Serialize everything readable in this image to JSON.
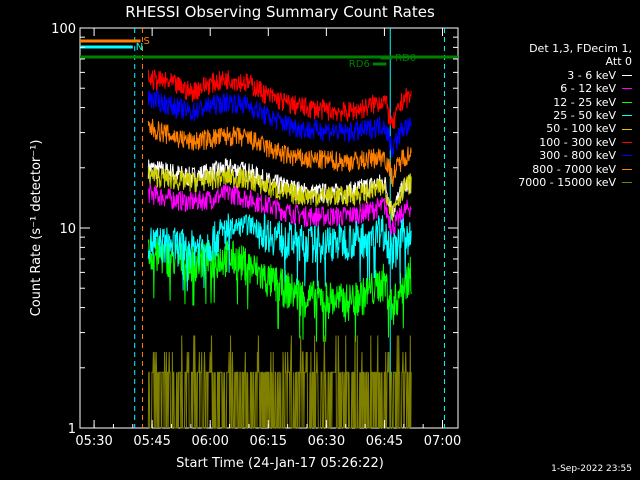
{
  "chart_data": {
    "type": "line",
    "title": "RHESSI Observing Summary Count Rates",
    "xlabel": "Start Time (24-Jan-17 05:26:22)",
    "ylabel": "Count Rate (s⁻¹ detector⁻¹)",
    "y_scale": "log",
    "ylim": [
      1,
      100
    ],
    "y_ticks": [
      {
        "value": 1,
        "label": "1"
      },
      {
        "value": 10,
        "label": "10"
      },
      {
        "value": 100,
        "label": "100"
      }
    ],
    "xlim": [
      "05:26:22",
      "07:04:00"
    ],
    "x_ticks": [
      {
        "value": "05:30",
        "label": "05:30"
      },
      {
        "value": "05:45",
        "label": "05:45"
      },
      {
        "value": "06:00",
        "label": "06:00"
      },
      {
        "value": "06:15",
        "label": "06:15"
      },
      {
        "value": "06:30",
        "label": "06:30"
      },
      {
        "value": "06:45",
        "label": "06:45"
      },
      {
        "value": "07:00",
        "label": "07:00"
      }
    ],
    "legend_header": [
      "Det 1,3, FDecim 1,",
      "Att 0"
    ],
    "legend_position": "right",
    "series": [
      {
        "name": "3 - 6 keV",
        "color": "#ffffff",
        "x": [
          "05:44",
          "05:50",
          "05:55",
          "06:00",
          "06:05",
          "06:10",
          "06:15",
          "06:20",
          "06:25",
          "06:30",
          "06:35",
          "06:40",
          "06:45",
          "06:47",
          "06:50",
          "06:52"
        ],
        "y": [
          20,
          19,
          18,
          19,
          20,
          19,
          17,
          16,
          15,
          15,
          15,
          16,
          17,
          12,
          16,
          17
        ]
      },
      {
        "name": "6 - 12 keV",
        "color": "#ff00ff",
        "x": [
          "05:44",
          "05:50",
          "05:55",
          "06:00",
          "06:05",
          "06:10",
          "06:15",
          "06:20",
          "06:25",
          "06:30",
          "06:35",
          "06:40",
          "06:45",
          "06:47",
          "06:50",
          "06:52"
        ],
        "y": [
          15,
          14,
          13.5,
          14,
          15,
          14,
          13,
          12,
          11.5,
          11.5,
          11.5,
          12,
          13,
          10,
          12,
          13
        ]
      },
      {
        "name": "12 - 25 keV",
        "color": "#00ff00",
        "x": [
          "05:44",
          "05:50",
          "05:55",
          "06:00",
          "06:05",
          "06:10",
          "06:15",
          "06:20",
          "06:25",
          "06:30",
          "06:35",
          "06:40",
          "06:45",
          "06:47",
          "06:50",
          "06:52"
        ],
        "y": [
          7.5,
          7.2,
          6.8,
          7,
          7.2,
          6.5,
          5.5,
          5,
          4.5,
          4.5,
          4.3,
          4.7,
          5.5,
          4,
          5.3,
          6
        ]
      },
      {
        "name": "25 - 50 keV",
        "color": "#00ffff",
        "x": [
          "05:44",
          "05:50",
          "05:55",
          "06:00",
          "06:05",
          "06:10",
          "06:15",
          "06:20",
          "06:25",
          "06:30",
          "06:35",
          "06:40",
          "06:45",
          "06:47",
          "06:50",
          "06:52"
        ],
        "y": [
          8.5,
          8.3,
          8,
          8.5,
          10,
          10.5,
          9.5,
          8.8,
          8.5,
          8.5,
          8.8,
          9,
          9.8,
          7.5,
          9.3,
          9.5
        ]
      },
      {
        "name": "50 - 100 keV",
        "color": "#d0d000",
        "x": [
          "05:44",
          "05:50",
          "05:55",
          "06:00",
          "06:05",
          "06:10",
          "06:15",
          "06:20",
          "06:25",
          "06:30",
          "06:35",
          "06:40",
          "06:45",
          "06:47",
          "06:50",
          "06:52"
        ],
        "y": [
          18.5,
          17.5,
          17,
          17.5,
          18,
          17.5,
          16,
          15,
          14.5,
          14.5,
          14.5,
          15,
          16,
          12,
          16,
          17
        ]
      },
      {
        "name": "100 - 300 keV",
        "color": "#ff0000",
        "x": [
          "05:44",
          "05:50",
          "05:55",
          "06:00",
          "06:05",
          "06:10",
          "06:15",
          "06:20",
          "06:25",
          "06:30",
          "06:35",
          "06:40",
          "06:45",
          "06:47",
          "06:50",
          "06:52"
        ],
        "y": [
          56,
          53,
          48,
          53,
          56,
          53,
          46,
          42,
          40,
          39,
          38,
          40,
          44,
          32,
          45,
          45
        ]
      },
      {
        "name": "300 - 800 keV",
        "color": "#0000ff",
        "x": [
          "05:44",
          "05:50",
          "05:55",
          "06:00",
          "06:05",
          "06:10",
          "06:15",
          "06:20",
          "06:25",
          "06:30",
          "06:35",
          "06:40",
          "06:45",
          "06:47",
          "06:50",
          "06:52"
        ],
        "y": [
          45,
          41,
          38,
          41,
          43,
          41,
          36,
          33,
          31,
          31,
          30,
          31,
          33,
          25,
          32,
          32
        ]
      },
      {
        "name": "800 - 7000 keV",
        "color": "#ff8000",
        "x": [
          "05:44",
          "05:50",
          "05:55",
          "06:00",
          "06:05",
          "06:10",
          "06:15",
          "06:20",
          "06:25",
          "06:30",
          "06:35",
          "06:40",
          "06:45",
          "06:47",
          "06:50",
          "06:52"
        ],
        "y": [
          32,
          29,
          27,
          28,
          29,
          28,
          25,
          23,
          22,
          22,
          21.5,
          22,
          23,
          18,
          23,
          23.5
        ]
      },
      {
        "name": "7000 - 15000 keV",
        "color": "#808000",
        "x": [
          "05:44",
          "05:50",
          "05:55",
          "06:00",
          "06:05",
          "06:10",
          "06:15",
          "06:20",
          "06:25",
          "06:30",
          "06:35",
          "06:40",
          "06:45",
          "06:47",
          "06:50",
          "06:52"
        ],
        "y": [
          1,
          1,
          1,
          1.9,
          1.9,
          1.9,
          1.9,
          1.9,
          1,
          1.3,
          1.9,
          1.9,
          1,
          1.9,
          1.9,
          1.9
        ]
      }
    ],
    "flag_bars": [
      {
        "label": "S",
        "color": "#ff8000",
        "x": [
          "05:26:22",
          "05:42:00"
        ]
      },
      {
        "label": "N",
        "color": "#00ffff",
        "x": [
          "05:26:22",
          "05:40:00"
        ]
      },
      {
        "label": "",
        "color": "#008000",
        "x": [
          "05:26:22",
          "07:04:00"
        ]
      },
      {
        "label": "RD0",
        "color": "#008000",
        "x": [
          "06:44:00",
          "06:47:00"
        ]
      },
      {
        "label": "RD6",
        "color": "#008000",
        "x": [
          "06:42:00",
          "06:45:30"
        ]
      }
    ],
    "vertical_lines": [
      {
        "color": "#00ffff",
        "style": "dashed",
        "x": "05:40:30"
      },
      {
        "color": "#ff8000",
        "style": "dashed",
        "x": "05:42:30"
      },
      {
        "color": "#00ffff",
        "style": "solid",
        "x": "06:46:30"
      },
      {
        "color": "#00ffff",
        "style": "dashed",
        "x": "07:00:30"
      }
    ]
  },
  "footer_text": "1-Sep-2022 23:55"
}
